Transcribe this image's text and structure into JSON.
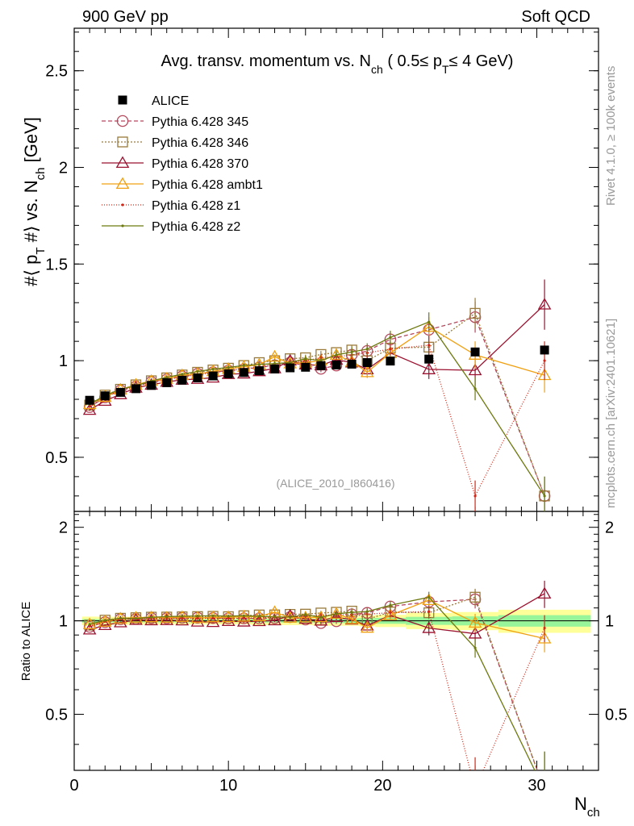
{
  "header": {
    "left": "900 GeV pp",
    "right": "Soft QCD"
  },
  "side": {
    "rivet": "Rivet 4.1.0, ≥ 100k events",
    "mcplots": "mcplots.cern.ch [arXiv:2401.10621]"
  },
  "chart_data": {
    "type": "scatter",
    "title": "Avg. transv. momentum vs. N_ch ( 0.5≤ p_T≤ 4 GeV)",
    "title_parts": {
      "a": "Avg. transv. momentum vs. N",
      "a_sub": "ch",
      "b": " ( 0.5≤ p",
      "b_sub": "T",
      "c": "≤ 4 GeV)"
    },
    "ylabel_parts": {
      "a": "#⟨ p",
      "a_sub": "T",
      "b": " #⟩ vs. N",
      "b_sub": "ch",
      "c": " [GeV]"
    },
    "ratio_ylabel": "Ratio to ALICE",
    "xlabel_parts": {
      "a": "N",
      "a_sub": "ch"
    },
    "watermark": "(ALICE_2010_I860416)",
    "xlim": [
      0,
      34
    ],
    "ylim": [
      0.22,
      2.72
    ],
    "ratio_ylim": [
      0.33,
      2.25
    ],
    "x_ticks": [
      0,
      10,
      20,
      30
    ],
    "x_tick_labels": [
      "0",
      "10",
      "20",
      "30"
    ],
    "y_ticks": [
      0.5,
      1,
      1.5,
      2,
      2.5
    ],
    "y_tick_labels": [
      "0.5",
      "1",
      "1.5",
      "2",
      "2.5"
    ],
    "ratio_ticks": [
      0.5,
      1,
      2
    ],
    "ratio_tick_labels": [
      "0.5",
      "1",
      "2"
    ],
    "legend_position": "top-left",
    "bins": [
      [
        0.5,
        1.5
      ],
      [
        1.5,
        2.5
      ],
      [
        2.5,
        3.5
      ],
      [
        3.5,
        4.5
      ],
      [
        4.5,
        5.5
      ],
      [
        5.5,
        6.5
      ],
      [
        6.5,
        7.5
      ],
      [
        7.5,
        8.5
      ],
      [
        8.5,
        9.5
      ],
      [
        9.5,
        10.5
      ],
      [
        10.5,
        11.5
      ],
      [
        11.5,
        12.5
      ],
      [
        12.5,
        13.5
      ],
      [
        13.5,
        14.5
      ],
      [
        14.5,
        15.5
      ],
      [
        15.5,
        16.5
      ],
      [
        16.5,
        17.5
      ],
      [
        17.5,
        18.5
      ],
      [
        18.5,
        19.5
      ],
      [
        19.5,
        21.5
      ],
      [
        21.5,
        24.5
      ],
      [
        24.5,
        27.5
      ],
      [
        27.5,
        33.5
      ]
    ],
    "x": [
      1,
      2,
      3,
      4,
      5,
      6,
      7,
      8,
      9,
      10,
      11,
      12,
      13,
      14,
      15,
      16,
      17,
      18,
      19,
      20.5,
      23,
      26,
      30.5
    ],
    "data": {
      "name": "ALICE",
      "values": [
        0.795,
        0.818,
        0.836,
        0.855,
        0.872,
        0.886,
        0.899,
        0.911,
        0.921,
        0.932,
        0.939,
        0.948,
        0.957,
        0.963,
        0.966,
        0.974,
        0.978,
        0.982,
        0.99,
        0.998,
        1.008,
        1.045,
        1.055
      ],
      "band_inner": [
        0.01,
        0.01,
        0.01,
        0.01,
        0.01,
        0.01,
        0.01,
        0.01,
        0.01,
        0.01,
        0.01,
        0.012,
        0.012,
        0.013,
        0.014,
        0.015,
        0.016,
        0.018,
        0.02,
        0.022,
        0.03,
        0.035,
        0.045
      ],
      "band_outer": [
        0.025,
        0.025,
        0.025,
        0.025,
        0.025,
        0.025,
        0.025,
        0.025,
        0.025,
        0.025,
        0.025,
        0.03,
        0.03,
        0.03,
        0.03,
        0.035,
        0.035,
        0.035,
        0.04,
        0.045,
        0.06,
        0.07,
        0.09
      ]
    },
    "series": [
      {
        "name": "Pythia 6.428 345",
        "color": "#b5485d",
        "marker": "circle",
        "dash": "5,3",
        "values": [
          0.76,
          0.81,
          0.846,
          0.867,
          0.89,
          0.903,
          0.919,
          0.932,
          0.94,
          0.949,
          0.956,
          0.965,
          0.976,
          0.99,
          0.975,
          0.958,
          0.975,
          1.03,
          1.05,
          1.11,
          1.16,
          1.225,
          0.3
        ],
        "errors": [
          0.005,
          0.005,
          0.005,
          0.005,
          0.005,
          0.005,
          0.006,
          0.006,
          0.007,
          0.008,
          0.009,
          0.01,
          0.012,
          0.014,
          0.016,
          0.018,
          0.02,
          0.025,
          0.03,
          0.035,
          0.05,
          0.08,
          0.1
        ]
      },
      {
        "name": "Pythia 6.428 346",
        "color": "#9a7a3a",
        "marker": "square",
        "dash": "2,2",
        "values": [
          0.77,
          0.822,
          0.852,
          0.875,
          0.896,
          0.911,
          0.926,
          0.94,
          0.952,
          0.961,
          0.975,
          0.99,
          1.0,
          1.01,
          1.015,
          1.032,
          1.042,
          1.055,
          1.0,
          1.065,
          1.07,
          1.245,
          0.3
        ],
        "errors": [
          0.005,
          0.005,
          0.005,
          0.005,
          0.005,
          0.005,
          0.006,
          0.006,
          0.007,
          0.008,
          0.009,
          0.01,
          0.012,
          0.014,
          0.016,
          0.018,
          0.02,
          0.025,
          0.03,
          0.035,
          0.05,
          0.08,
          0.1
        ]
      },
      {
        "name": "Pythia 6.428 370",
        "color": "#9b1230",
        "marker": "triangle",
        "dash": "",
        "values": [
          0.745,
          0.792,
          0.826,
          0.86,
          0.875,
          0.89,
          0.901,
          0.905,
          0.912,
          0.93,
          0.933,
          0.945,
          0.96,
          1.0,
          0.98,
          0.975,
          1.005,
          0.99,
          0.955,
          1.04,
          0.955,
          0.95,
          1.29
        ],
        "errors": [
          0.005,
          0.005,
          0.005,
          0.005,
          0.005,
          0.005,
          0.006,
          0.006,
          0.007,
          0.008,
          0.009,
          0.01,
          0.012,
          0.014,
          0.016,
          0.018,
          0.02,
          0.025,
          0.03,
          0.035,
          0.05,
          0.08,
          0.13
        ]
      },
      {
        "name": "Pythia 6.428 ambt1",
        "color": "#f0a010",
        "marker": "triangle",
        "dash": "",
        "values": [
          0.775,
          0.812,
          0.85,
          0.875,
          0.895,
          0.906,
          0.925,
          0.931,
          0.945,
          0.957,
          0.968,
          0.98,
          1.02,
          0.985,
          0.99,
          1.0,
          1.03,
          0.995,
          0.94,
          1.04,
          1.175,
          1.03,
          0.925
        ],
        "errors": [
          0.005,
          0.005,
          0.005,
          0.005,
          0.005,
          0.005,
          0.006,
          0.006,
          0.007,
          0.008,
          0.009,
          0.01,
          0.012,
          0.014,
          0.016,
          0.018,
          0.02,
          0.025,
          0.03,
          0.035,
          0.05,
          0.07,
          0.09
        ]
      },
      {
        "name": "Pythia 6.428 z1",
        "color": "#d02818",
        "marker": "dot",
        "dash": "1,2",
        "values": [
          0.765,
          0.815,
          0.846,
          0.866,
          0.888,
          0.902,
          0.915,
          0.927,
          0.938,
          0.948,
          0.958,
          0.968,
          0.982,
          0.99,
          1.0,
          1.015,
          1.02,
          1.03,
          1.04,
          1.06,
          1.08,
          0.3,
          1.0
        ],
        "errors": [
          0.005,
          0.005,
          0.005,
          0.005,
          0.005,
          0.005,
          0.006,
          0.006,
          0.007,
          0.008,
          0.009,
          0.01,
          0.012,
          0.014,
          0.016,
          0.018,
          0.02,
          0.025,
          0.03,
          0.035,
          0.05,
          0.08,
          0.1
        ]
      },
      {
        "name": "Pythia 6.428 z2",
        "color": "#6e7a10",
        "marker": "dot",
        "dash": "",
        "values": [
          0.775,
          0.82,
          0.852,
          0.87,
          0.895,
          0.914,
          0.93,
          0.944,
          0.956,
          0.965,
          0.975,
          0.98,
          0.985,
          0.99,
          1.01,
          1.0,
          1.03,
          1.045,
          1.06,
          1.12,
          1.2,
          0.855,
          0.3
        ],
        "errors": [
          0.005,
          0.005,
          0.005,
          0.005,
          0.005,
          0.005,
          0.006,
          0.006,
          0.007,
          0.008,
          0.009,
          0.01,
          0.012,
          0.014,
          0.016,
          0.018,
          0.02,
          0.025,
          0.03,
          0.035,
          0.05,
          0.06,
          0.1
        ]
      }
    ]
  }
}
